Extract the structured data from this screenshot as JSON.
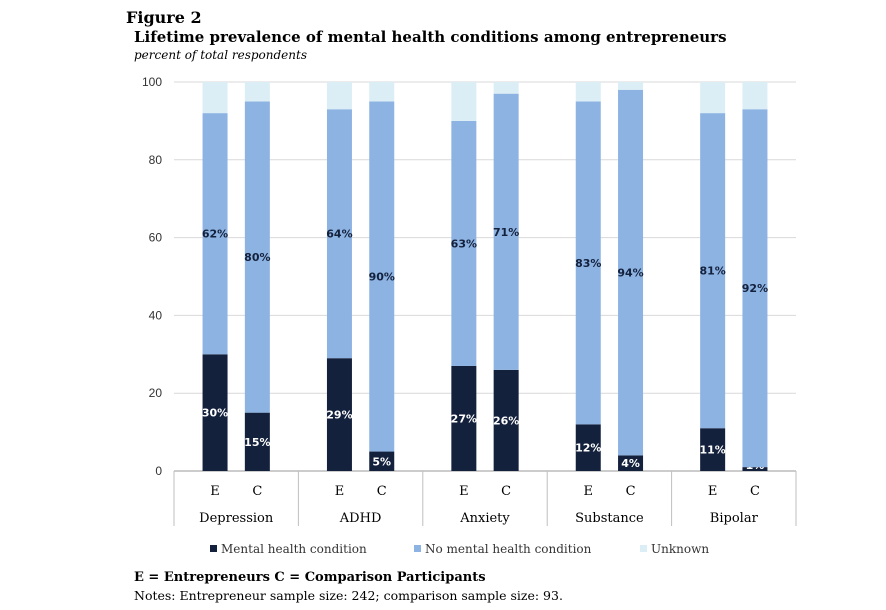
{
  "figure_label": "Figure 2",
  "key_text": "E = Entrepreneurs   C = Comparison Participants",
  "notes": "Notes: Entrepreneur sample size: 242; comparison sample size: 93.",
  "chart_data": {
    "type": "bar",
    "stacked": true,
    "title": "Lifetime prevalence of mental health conditions among entrepreneurs",
    "subtitle": "percent of total respondents",
    "ylim": [
      0,
      100
    ],
    "yticks": [
      0,
      20,
      40,
      60,
      80,
      100
    ],
    "grid": true,
    "legend_position": "bottom",
    "groups": [
      "Depression",
      "ADHD",
      "Anxiety",
      "Substance",
      "Bipolar"
    ],
    "subcategories": [
      "E",
      "C"
    ],
    "categories": [
      "Depression E",
      "Depression C",
      "ADHD E",
      "ADHD C",
      "Anxiety E",
      "Anxiety C",
      "Substance E",
      "Substance C",
      "Bipolar E",
      "Bipolar C"
    ],
    "series": [
      {
        "name": "Mental health condition",
        "color": "#14213d",
        "values": [
          30,
          15,
          29,
          5,
          27,
          26,
          12,
          4,
          11,
          1
        ],
        "labels": [
          "30%",
          "15%",
          "29%",
          "5%",
          "27%",
          "26%",
          "12%",
          "4%",
          "11%",
          "1%"
        ]
      },
      {
        "name": "No mental health condition",
        "color": "#8db3e2",
        "values": [
          62,
          80,
          64,
          90,
          63,
          71,
          83,
          94,
          81,
          92
        ],
        "labels": [
          "62%",
          "80%",
          "64%",
          "90%",
          "63%",
          "71%",
          "83%",
          "94%",
          "81%",
          "92%"
        ]
      },
      {
        "name": "Unknown",
        "color": "#dbeef5",
        "values": [
          8,
          5,
          7,
          5,
          10,
          3,
          5,
          2,
          8,
          7
        ]
      }
    ]
  }
}
